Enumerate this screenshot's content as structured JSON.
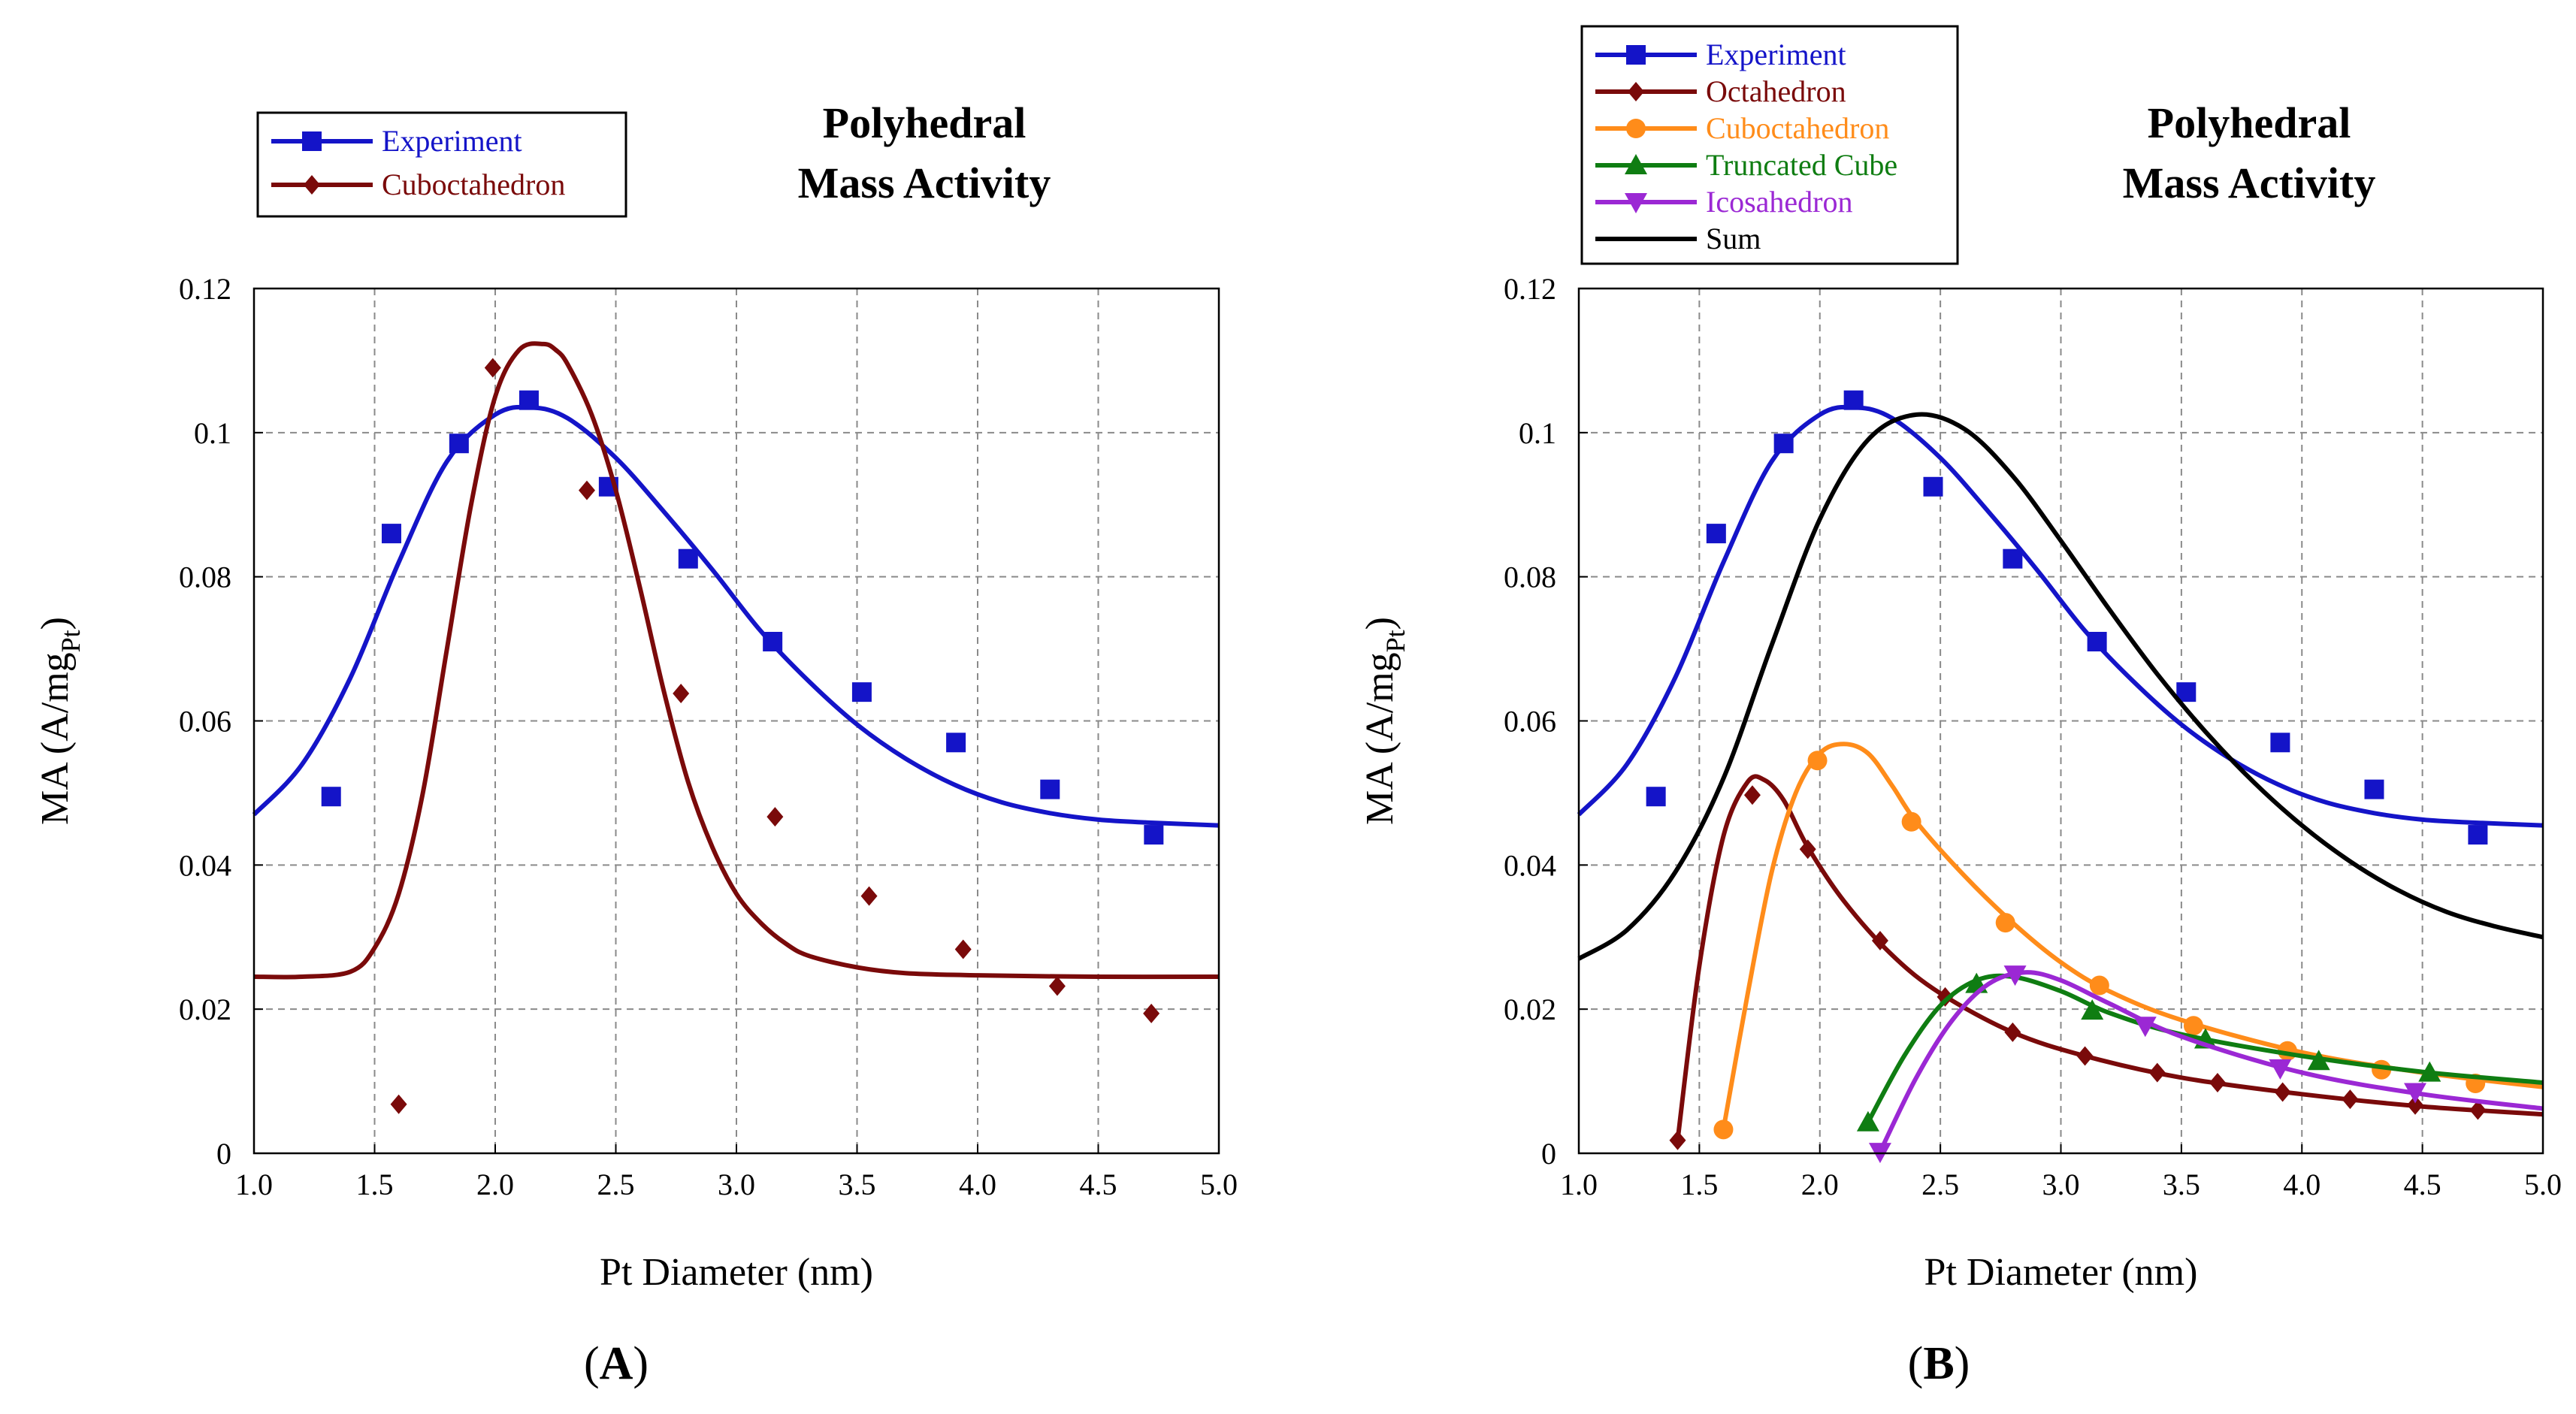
{
  "colors": {
    "experiment": "#1414c8",
    "octahedron": "#7a0a0a",
    "cuboctahedron_b": "#ff8c1a",
    "truncated_cube": "#0f7d12",
    "icosahedron": "#9b28d4",
    "sum": "#000000",
    "cuboctahedron_a": "#7a0a0a",
    "grid": "#8a8a8a"
  },
  "chart_data": [
    {
      "type": "scatter",
      "panel_label": "A",
      "title": "Polyhedral\nMass Activity",
      "title_lines": [
        "Polyhedral",
        "Mass Activity"
      ],
      "xlabel": "Pt Diameter (nm)",
      "ylabel_main": "MA (A/mg",
      "ylabel_sub": "Pt",
      "ylabel_close": ")",
      "xlim": [
        1.0,
        5.0
      ],
      "ylim": [
        0,
        0.12
      ],
      "xticks": [
        "1.0",
        "1.5",
        "2.0",
        "2.5",
        "3.0",
        "3.5",
        "4.0",
        "4.5",
        "5.0"
      ],
      "yticks": [
        "0",
        "0.02",
        "0.04",
        "0.06",
        "0.08",
        "0.1",
        "0.12"
      ],
      "grid": true,
      "legend_position": "top-left",
      "series": [
        {
          "name": "Experiment",
          "color_key": "experiment",
          "marker": "square",
          "x": [
            1.32,
            1.57,
            1.85,
            2.14,
            2.47,
            2.8,
            3.15,
            3.52,
            3.91,
            4.3,
            4.73
          ],
          "y": [
            0.0495,
            0.086,
            0.0985,
            0.1045,
            0.0925,
            0.0825,
            0.071,
            0.064,
            0.057,
            0.0505,
            0.0442
          ],
          "fit_x": [
            1.0,
            1.2,
            1.4,
            1.6,
            1.8,
            2.0,
            2.15,
            2.3,
            2.5,
            2.7,
            2.9,
            3.1,
            3.3,
            3.5,
            3.7,
            3.9,
            4.1,
            4.3,
            4.5,
            4.7,
            5.0
          ],
          "fit_y": [
            0.047,
            0.054,
            0.066,
            0.082,
            0.096,
            0.1025,
            0.1035,
            0.102,
            0.0965,
            0.089,
            0.081,
            0.0725,
            0.0655,
            0.0595,
            0.0548,
            0.0512,
            0.0487,
            0.0472,
            0.0463,
            0.0459,
            0.0455
          ]
        },
        {
          "name": "Cuboctahedron",
          "color_key": "cuboctahedron_a",
          "marker": "diamond",
          "x": [
            1.6,
            1.99,
            2.38,
            2.77,
            3.16,
            3.55,
            3.94,
            4.33,
            4.72
          ],
          "y": [
            0.0068,
            0.109,
            0.092,
            0.0638,
            0.0467,
            0.0357,
            0.0283,
            0.0232,
            0.0194
          ],
          "fit_x": [
            1.0,
            1.2,
            1.4,
            1.5,
            1.6,
            1.7,
            1.8,
            1.9,
            2.0,
            2.1,
            2.2,
            2.25,
            2.3,
            2.4,
            2.5,
            2.6,
            2.7,
            2.8,
            2.9,
            3.0,
            3.1,
            3.2,
            3.3,
            3.5,
            3.7,
            4.0,
            4.5,
            5.0
          ],
          "fit_y": [
            0.0245,
            0.0245,
            0.0252,
            0.0285,
            0.036,
            0.05,
            0.07,
            0.09,
            0.105,
            0.1115,
            0.1123,
            0.1115,
            0.1095,
            0.1025,
            0.092,
            0.0785,
            0.064,
            0.0515,
            0.0425,
            0.036,
            0.032,
            0.0292,
            0.0274,
            0.0258,
            0.025,
            0.0247,
            0.0245,
            0.0245
          ]
        }
      ]
    },
    {
      "type": "scatter",
      "panel_label": "B",
      "title": "Polyhedral\nMass Activity",
      "title_lines": [
        "Polyhedral",
        "Mass Activity"
      ],
      "xlabel": "Pt Diameter (nm)",
      "ylabel_main": "MA (A/mg",
      "ylabel_sub": "Pt",
      "ylabel_close": ")",
      "xlim": [
        1.0,
        5.0
      ],
      "ylim": [
        0,
        0.12
      ],
      "xticks": [
        "1.0",
        "1.5",
        "2.0",
        "2.5",
        "3.0",
        "3.5",
        "4.0",
        "4.5",
        "5.0"
      ],
      "yticks": [
        "0",
        "0.02",
        "0.04",
        "0.06",
        "0.08",
        "0.1",
        "0.12"
      ],
      "grid": true,
      "legend_position": "top-left",
      "series": [
        {
          "name": "Experiment",
          "color_key": "experiment",
          "marker": "square",
          "x": [
            1.32,
            1.57,
            1.85,
            2.14,
            2.47,
            2.8,
            3.15,
            3.52,
            3.91,
            4.3,
            4.73
          ],
          "y": [
            0.0495,
            0.086,
            0.0985,
            0.1045,
            0.0925,
            0.0825,
            0.071,
            0.064,
            0.057,
            0.0505,
            0.0442
          ],
          "fit_x": [
            1.0,
            1.2,
            1.4,
            1.6,
            1.8,
            2.0,
            2.15,
            2.3,
            2.5,
            2.7,
            2.9,
            3.1,
            3.3,
            3.5,
            3.7,
            3.9,
            4.1,
            4.3,
            4.5,
            4.7,
            5.0
          ],
          "fit_y": [
            0.047,
            0.054,
            0.066,
            0.082,
            0.096,
            0.1025,
            0.1035,
            0.102,
            0.0965,
            0.089,
            0.081,
            0.0725,
            0.0655,
            0.0595,
            0.0548,
            0.0512,
            0.0487,
            0.0472,
            0.0463,
            0.0459,
            0.0455
          ]
        },
        {
          "name": "Octahedron",
          "color_key": "octahedron",
          "marker": "diamond",
          "x": [
            1.41,
            1.72,
            1.95,
            2.25,
            2.52,
            2.8,
            3.1,
            3.4,
            3.65,
            3.92,
            4.2,
            4.47,
            4.73
          ],
          "y": [
            0.0018,
            0.0497,
            0.0422,
            0.0295,
            0.0217,
            0.0168,
            0.0135,
            0.0112,
            0.0098,
            0.0085,
            0.0075,
            0.0067,
            0.006
          ],
          "fit_x": [
            1.41,
            1.5,
            1.6,
            1.7,
            1.77,
            1.85,
            1.95,
            2.1,
            2.3,
            2.5,
            2.8,
            3.1,
            3.5,
            4.0,
            4.5,
            5.0
          ],
          "fit_y": [
            0.0018,
            0.026,
            0.044,
            0.0515,
            0.0518,
            0.049,
            0.0425,
            0.035,
            0.0275,
            0.0222,
            0.0168,
            0.0135,
            0.0105,
            0.0082,
            0.0065,
            0.0054
          ]
        },
        {
          "name": "Cuboctahedron",
          "color_key": "cuboctahedron_b",
          "marker": "circle",
          "x": [
            1.6,
            1.99,
            2.38,
            2.77,
            3.16,
            3.55,
            3.94,
            4.33,
            4.72
          ],
          "y": [
            0.0033,
            0.0545,
            0.046,
            0.032,
            0.0233,
            0.0177,
            0.0142,
            0.0116,
            0.0097
          ],
          "fit_x": [
            1.6,
            1.7,
            1.8,
            1.9,
            2.0,
            2.1,
            2.2,
            2.3,
            2.4,
            2.6,
            2.8,
            3.0,
            3.2,
            3.5,
            4.0,
            4.5,
            5.0
          ],
          "fit_y": [
            0.0033,
            0.022,
            0.039,
            0.05,
            0.0555,
            0.0568,
            0.0555,
            0.051,
            0.046,
            0.0385,
            0.032,
            0.0265,
            0.0225,
            0.0185,
            0.014,
            0.0112,
            0.0092
          ]
        },
        {
          "name": "Truncated Cube",
          "color_key": "truncated_cube",
          "marker": "triangle-up",
          "x": [
            2.2,
            2.65,
            3.13,
            3.6,
            4.07,
            4.53
          ],
          "y": [
            0.0043,
            0.0235,
            0.0198,
            0.0158,
            0.0128,
            0.0112
          ],
          "fit_x": [
            2.2,
            2.35,
            2.5,
            2.65,
            2.8,
            3.0,
            3.2,
            3.5,
            4.0,
            4.5,
            5.0
          ],
          "fit_y": [
            0.0043,
            0.0135,
            0.0205,
            0.024,
            0.0245,
            0.0225,
            0.0195,
            0.0165,
            0.0135,
            0.0113,
            0.0098
          ]
        },
        {
          "name": "Icosahedron",
          "color_key": "icosahedron",
          "marker": "triangle-down",
          "x": [
            2.25,
            2.81,
            3.35,
            3.91,
            4.47
          ],
          "y": [
            0.0002,
            0.0248,
            0.0177,
            0.0118,
            0.0085
          ],
          "fit_x": [
            2.25,
            2.4,
            2.55,
            2.7,
            2.85,
            3.0,
            3.2,
            3.5,
            4.0,
            4.5,
            5.0
          ],
          "fit_y": [
            0.0002,
            0.0105,
            0.0185,
            0.0235,
            0.0251,
            0.024,
            0.0208,
            0.0162,
            0.0112,
            0.0082,
            0.0062
          ]
        },
        {
          "name": "Sum",
          "color_key": "sum",
          "marker": "none",
          "x": [],
          "y": [],
          "fit_x": [
            1.0,
            1.2,
            1.4,
            1.6,
            1.8,
            2.0,
            2.2,
            2.4,
            2.6,
            2.8,
            3.0,
            3.2,
            3.4,
            3.6,
            3.8,
            4.0,
            4.2,
            4.4,
            4.6,
            4.8,
            5.0
          ],
          "fit_y": [
            0.027,
            0.031,
            0.039,
            0.052,
            0.0705,
            0.088,
            0.099,
            0.1025,
            0.1005,
            0.094,
            0.085,
            0.0755,
            0.0665,
            0.0585,
            0.0515,
            0.0455,
            0.0405,
            0.0365,
            0.0335,
            0.0315,
            0.03
          ]
        }
      ]
    }
  ]
}
